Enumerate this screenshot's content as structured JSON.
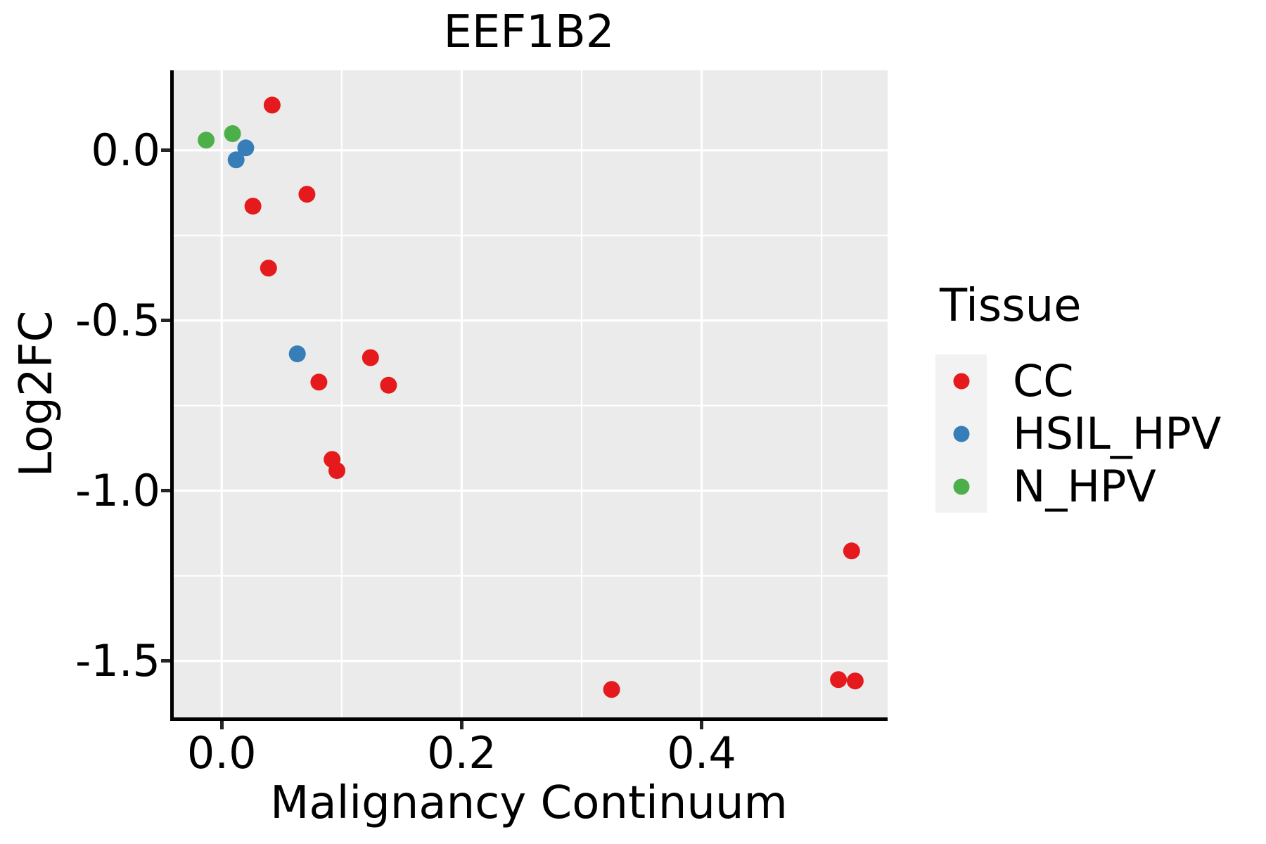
{
  "chart_data": {
    "type": "scatter",
    "title": "EEF1B2",
    "xlabel": "Malignancy Continuum",
    "ylabel": "Log2FC",
    "xlim": [
      -0.04,
      0.555
    ],
    "ylim": [
      -1.666,
      0.235
    ],
    "x_ticks": [
      0.0,
      0.2,
      0.4
    ],
    "x_tick_labels": [
      "0.0",
      "0.2",
      "0.4"
    ],
    "x_minor_ticks": [
      0.1,
      0.3,
      0.5
    ],
    "y_ticks": [
      0.0,
      -0.5,
      -1.0,
      -1.5
    ],
    "y_tick_labels": [
      "0.0",
      "-0.5",
      "-1.0",
      "-1.5"
    ],
    "y_minor_ticks": [
      -0.25,
      -0.75,
      -1.25
    ],
    "grid": true,
    "legend_title": "Tissue",
    "legend_position": "right",
    "series": [
      {
        "name": "CC",
        "color": "#E41A1C",
        "points": [
          [
            0.042,
            0.133
          ],
          [
            0.026,
            -0.164
          ],
          [
            0.071,
            -0.129
          ],
          [
            0.039,
            -0.346
          ],
          [
            0.124,
            -0.609
          ],
          [
            0.081,
            -0.681
          ],
          [
            0.139,
            -0.69
          ],
          [
            0.092,
            -0.908
          ],
          [
            0.096,
            -0.941
          ],
          [
            0.325,
            -1.584
          ],
          [
            0.525,
            -1.177
          ],
          [
            0.514,
            -1.555
          ],
          [
            0.528,
            -1.559
          ]
        ]
      },
      {
        "name": "HSIL_HPV",
        "color": "#377EB8",
        "points": [
          [
            0.02,
            0.007
          ],
          [
            0.012,
            -0.028
          ],
          [
            0.063,
            -0.598
          ]
        ]
      },
      {
        "name": "N_HPV",
        "color": "#4DAF4A",
        "points": [
          [
            -0.013,
            0.03
          ],
          [
            0.009,
            0.049
          ]
        ]
      }
    ],
    "colors": {
      "panel_background": "#EBEBEB",
      "grid": "#FFFFFF",
      "axis_line": "#000000",
      "tick_mark": "#262626",
      "text": "#000000",
      "legend_key_background": "#F2F2F2"
    }
  }
}
